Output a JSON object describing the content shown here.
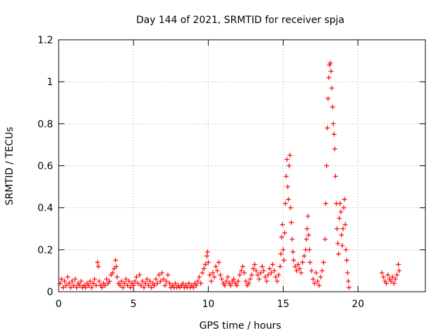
{
  "chart_data": {
    "type": "scatter",
    "title": "Day 144 of 2021, SRMTID for receiver spja",
    "xlabel": "GPS time / hours",
    "ylabel": "SRMTID / TECUs",
    "xlim": [
      0,
      24.5
    ],
    "ylim": [
      0,
      1.2
    ],
    "x_ticks": [
      0,
      5,
      10,
      15,
      20
    ],
    "x_tick_labels": [
      "0",
      "5",
      "10",
      "15",
      "20"
    ],
    "y_ticks": [
      0,
      0.2,
      0.4,
      0.6,
      0.8,
      1.0,
      1.2
    ],
    "y_tick_labels": [
      "0",
      "0.2",
      "0.4",
      "0.6",
      "0.8",
      "1",
      "1.2"
    ],
    "grid": true,
    "marker": "+",
    "series": [
      {
        "name": "SRMTID",
        "color": "#ff0000",
        "points": [
          [
            0.1,
            0.04
          ],
          [
            0.2,
            0.06
          ],
          [
            0.3,
            0.02
          ],
          [
            0.4,
            0.05
          ],
          [
            0.5,
            0.03
          ],
          [
            0.6,
            0.07
          ],
          [
            0.7,
            0.04
          ],
          [
            0.8,
            0.02
          ],
          [
            0.9,
            0.05
          ],
          [
            1.0,
            0.03
          ],
          [
            1.1,
            0.06
          ],
          [
            1.2,
            0.02
          ],
          [
            1.3,
            0.04
          ],
          [
            1.4,
            0.03
          ],
          [
            1.5,
            0.05
          ],
          [
            1.6,
            0.02
          ],
          [
            1.7,
            0.03
          ],
          [
            1.8,
            0.02
          ],
          [
            1.9,
            0.04
          ],
          [
            2.0,
            0.03
          ],
          [
            2.1,
            0.05
          ],
          [
            2.2,
            0.02
          ],
          [
            2.3,
            0.04
          ],
          [
            2.4,
            0.06
          ],
          [
            2.5,
            0.03
          ],
          [
            2.6,
            0.14
          ],
          [
            2.65,
            0.12
          ],
          [
            2.7,
            0.05
          ],
          [
            2.8,
            0.03
          ],
          [
            2.9,
            0.02
          ],
          [
            3.0,
            0.04
          ],
          [
            3.1,
            0.03
          ],
          [
            3.2,
            0.06
          ],
          [
            3.3,
            0.04
          ],
          [
            3.4,
            0.05
          ],
          [
            3.5,
            0.08
          ],
          [
            3.6,
            0.09
          ],
          [
            3.7,
            0.11
          ],
          [
            3.8,
            0.15
          ],
          [
            3.85,
            0.12
          ],
          [
            3.9,
            0.07
          ],
          [
            4.0,
            0.04
          ],
          [
            4.1,
            0.03
          ],
          [
            4.2,
            0.05
          ],
          [
            4.3,
            0.02
          ],
          [
            4.4,
            0.04
          ],
          [
            4.5,
            0.06
          ],
          [
            4.6,
            0.03
          ],
          [
            4.7,
            0.05
          ],
          [
            4.8,
            0.02
          ],
          [
            4.9,
            0.04
          ],
          [
            5.0,
            0.03
          ],
          [
            5.1,
            0.05
          ],
          [
            5.2,
            0.07
          ],
          [
            5.3,
            0.04
          ],
          [
            5.4,
            0.08
          ],
          [
            5.5,
            0.03
          ],
          [
            5.6,
            0.05
          ],
          [
            5.7,
            0.02
          ],
          [
            5.8,
            0.04
          ],
          [
            5.9,
            0.06
          ],
          [
            6.0,
            0.03
          ],
          [
            6.1,
            0.05
          ],
          [
            6.2,
            0.02
          ],
          [
            6.3,
            0.04
          ],
          [
            6.4,
            0.03
          ],
          [
            6.5,
            0.06
          ],
          [
            6.6,
            0.04
          ],
          [
            6.7,
            0.08
          ],
          [
            6.8,
            0.05
          ],
          [
            6.9,
            0.09
          ],
          [
            7.0,
            0.06
          ],
          [
            7.1,
            0.03
          ],
          [
            7.2,
            0.05
          ],
          [
            7.3,
            0.08
          ],
          [
            7.4,
            0.04
          ],
          [
            7.5,
            0.02
          ],
          [
            7.6,
            0.03
          ],
          [
            7.7,
            0.02
          ],
          [
            7.8,
            0.04
          ],
          [
            7.9,
            0.02
          ],
          [
            8.0,
            0.03
          ],
          [
            8.1,
            0.02
          ],
          [
            8.2,
            0.03
          ],
          [
            8.3,
            0.04
          ],
          [
            8.4,
            0.02
          ],
          [
            8.5,
            0.03
          ],
          [
            8.6,
            0.02
          ],
          [
            8.7,
            0.04
          ],
          [
            8.8,
            0.02
          ],
          [
            8.9,
            0.03
          ],
          [
            9.0,
            0.02
          ],
          [
            9.1,
            0.04
          ],
          [
            9.2,
            0.03
          ],
          [
            9.3,
            0.05
          ],
          [
            9.4,
            0.07
          ],
          [
            9.5,
            0.04
          ],
          [
            9.6,
            0.09
          ],
          [
            9.7,
            0.11
          ],
          [
            9.8,
            0.13
          ],
          [
            9.9,
            0.17
          ],
          [
            9.95,
            0.19
          ],
          [
            10.0,
            0.14
          ],
          [
            10.1,
            0.08
          ],
          [
            10.2,
            0.05
          ],
          [
            10.3,
            0.09
          ],
          [
            10.4,
            0.07
          ],
          [
            10.5,
            0.12
          ],
          [
            10.6,
            0.1
          ],
          [
            10.7,
            0.14
          ],
          [
            10.8,
            0.08
          ],
          [
            10.9,
            0.06
          ],
          [
            11.0,
            0.04
          ],
          [
            11.1,
            0.03
          ],
          [
            11.2,
            0.05
          ],
          [
            11.3,
            0.07
          ],
          [
            11.4,
            0.04
          ],
          [
            11.5,
            0.03
          ],
          [
            11.6,
            0.05
          ],
          [
            11.7,
            0.06
          ],
          [
            11.8,
            0.04
          ],
          [
            11.9,
            0.03
          ],
          [
            12.0,
            0.05
          ],
          [
            12.1,
            0.08
          ],
          [
            12.2,
            0.1
          ],
          [
            12.3,
            0.12
          ],
          [
            12.4,
            0.09
          ],
          [
            12.5,
            0.05
          ],
          [
            12.6,
            0.03
          ],
          [
            12.7,
            0.04
          ],
          [
            12.8,
            0.06
          ],
          [
            12.9,
            0.08
          ],
          [
            13.0,
            0.11
          ],
          [
            13.1,
            0.13
          ],
          [
            13.2,
            0.1
          ],
          [
            13.3,
            0.08
          ],
          [
            13.4,
            0.06
          ],
          [
            13.5,
            0.09
          ],
          [
            13.6,
            0.12
          ],
          [
            13.7,
            0.1
          ],
          [
            13.8,
            0.07
          ],
          [
            13.9,
            0.05
          ],
          [
            14.0,
            0.08
          ],
          [
            14.1,
            0.11
          ],
          [
            14.2,
            0.09
          ],
          [
            14.3,
            0.13
          ],
          [
            14.4,
            0.1
          ],
          [
            14.5,
            0.07
          ],
          [
            14.6,
            0.05
          ],
          [
            14.7,
            0.08
          ],
          [
            14.8,
            0.12
          ],
          [
            14.85,
            0.18
          ],
          [
            14.9,
            0.26
          ],
          [
            14.95,
            0.32
          ],
          [
            15.0,
            0.2
          ],
          [
            15.05,
            0.15
          ],
          [
            15.1,
            0.28
          ],
          [
            15.15,
            0.42
          ],
          [
            15.2,
            0.55
          ],
          [
            15.25,
            0.63
          ],
          [
            15.3,
            0.5
          ],
          [
            15.35,
            0.44
          ],
          [
            15.4,
            0.6
          ],
          [
            15.45,
            0.65
          ],
          [
            15.5,
            0.4
          ],
          [
            15.55,
            0.33
          ],
          [
            15.6,
            0.25
          ],
          [
            15.65,
            0.19
          ],
          [
            15.7,
            0.15
          ],
          [
            15.8,
            0.12
          ],
          [
            15.9,
            0.1
          ],
          [
            16.0,
            0.13
          ],
          [
            16.1,
            0.11
          ],
          [
            16.2,
            0.09
          ],
          [
            16.3,
            0.14
          ],
          [
            16.4,
            0.17
          ],
          [
            16.5,
            0.2
          ],
          [
            16.55,
            0.25
          ],
          [
            16.6,
            0.3
          ],
          [
            16.65,
            0.36
          ],
          [
            16.7,
            0.27
          ],
          [
            16.75,
            0.2
          ],
          [
            16.8,
            0.14
          ],
          [
            16.9,
            0.1
          ],
          [
            17.0,
            0.06
          ],
          [
            17.1,
            0.04
          ],
          [
            17.2,
            0.09
          ],
          [
            17.3,
            0.05
          ],
          [
            17.4,
            0.03
          ],
          [
            17.5,
            0.07
          ],
          [
            17.6,
            0.1
          ],
          [
            17.7,
            0.14
          ],
          [
            17.8,
            0.25
          ],
          [
            17.85,
            0.42
          ],
          [
            17.9,
            0.6
          ],
          [
            17.95,
            0.78
          ],
          [
            18.0,
            0.92
          ],
          [
            18.05,
            1.02
          ],
          [
            18.1,
            1.08
          ],
          [
            18.15,
            1.09
          ],
          [
            18.2,
            1.05
          ],
          [
            18.25,
            0.97
          ],
          [
            18.3,
            0.88
          ],
          [
            18.35,
            0.8
          ],
          [
            18.4,
            0.75
          ],
          [
            18.45,
            0.68
          ],
          [
            18.5,
            0.55
          ],
          [
            18.55,
            0.42
          ],
          [
            18.6,
            0.3
          ],
          [
            18.65,
            0.23
          ],
          [
            18.7,
            0.18
          ],
          [
            18.75,
            0.35
          ],
          [
            18.8,
            0.42
          ],
          [
            18.85,
            0.38
          ],
          [
            18.9,
            0.27
          ],
          [
            18.95,
            0.22
          ],
          [
            19.0,
            0.3
          ],
          [
            19.05,
            0.4
          ],
          [
            19.1,
            0.44
          ],
          [
            19.15,
            0.32
          ],
          [
            19.2,
            0.2
          ],
          [
            19.25,
            0.15
          ],
          [
            19.3,
            0.09
          ],
          [
            19.35,
            0.05
          ],
          [
            19.4,
            0.02
          ],
          [
            21.6,
            0.09
          ],
          [
            21.7,
            0.07
          ],
          [
            21.8,
            0.05
          ],
          [
            21.9,
            0.04
          ],
          [
            22.0,
            0.08
          ],
          [
            22.1,
            0.06
          ],
          [
            22.2,
            0.05
          ],
          [
            22.3,
            0.07
          ],
          [
            22.4,
            0.04
          ],
          [
            22.5,
            0.06
          ],
          [
            22.6,
            0.08
          ],
          [
            22.7,
            0.13
          ],
          [
            22.75,
            0.1
          ]
        ]
      }
    ]
  }
}
